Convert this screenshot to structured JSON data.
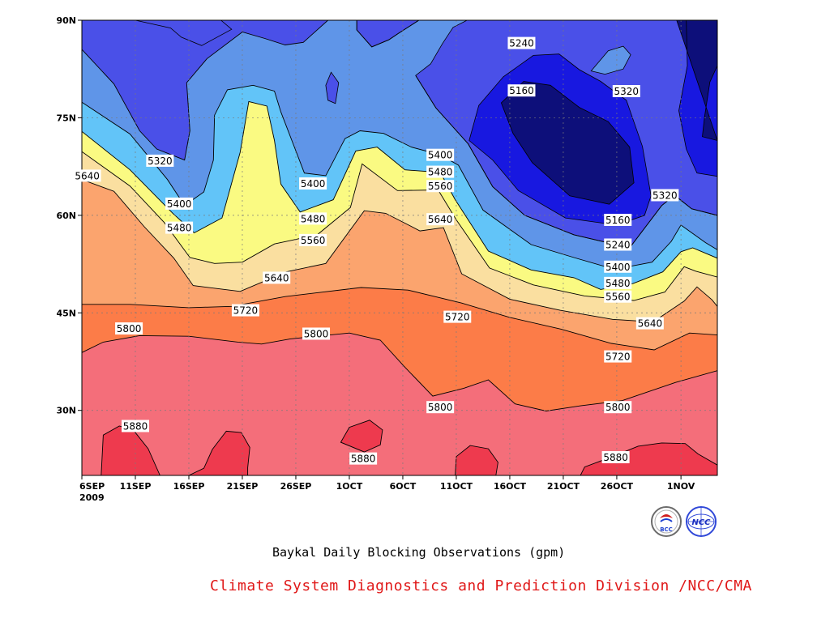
{
  "chart_data": {
    "type": "contour",
    "xlabel": "",
    "ylabel": "",
    "x_range": [
      "6SEP2009",
      "4NOV2009"
    ],
    "y_range": [
      20,
      90
    ],
    "grid": true,
    "x_ticks": [
      {
        "label": "6SEP",
        "day": 0,
        "year": "2009"
      },
      {
        "label": "11SEP",
        "day": 5
      },
      {
        "label": "16SEP",
        "day": 10
      },
      {
        "label": "21SEP",
        "day": 15
      },
      {
        "label": "26SEP",
        "day": 20
      },
      {
        "label": "1OCT",
        "day": 25
      },
      {
        "label": "6OCT",
        "day": 30
      },
      {
        "label": "11OCT",
        "day": 35
      },
      {
        "label": "16OCT",
        "day": 40
      },
      {
        "label": "21OCT",
        "day": 45
      },
      {
        "label": "26OCT",
        "day": 50
      },
      {
        "label": "1NOV",
        "day": 56
      }
    ],
    "y_ticks": [
      {
        "label": "30N",
        "lat": 30
      },
      {
        "label": "45N",
        "lat": 45
      },
      {
        "label": "60N",
        "lat": 60
      },
      {
        "label": "75N",
        "lat": 75
      },
      {
        "label": "90N",
        "lat": 90
      }
    ],
    "contour_levels": [
      5160,
      5240,
      5320,
      5400,
      5480,
      5560,
      5640,
      5720,
      5800,
      5880
    ],
    "fill_colors": {
      "below_5160": "#0d0f7a",
      "5160_5240": "#1818e0",
      "5240_5320": "#4a50e8",
      "5320_5400": "#5f95e8",
      "5400_5480": "#62c4f8",
      "5480_5560": "#fafa82",
      "5560_5640": "#fadfa0",
      "5640_5720": "#fba46e",
      "5720_5800": "#fc7c48",
      "5800_5880": "#f46e7a",
      "above_5880": "#ee3a4e"
    },
    "contour_labels": [
      {
        "text": "5880",
        "day": 5,
        "lat": 27.6
      },
      {
        "text": "5880",
        "day": 26.3,
        "lat": 22.6
      },
      {
        "text": "5880",
        "day": 49.9,
        "lat": 22.8
      },
      {
        "text": "5800",
        "day": 4.4,
        "lat": 42.6
      },
      {
        "text": "5800",
        "day": 21.9,
        "lat": 41.8
      },
      {
        "text": "5800",
        "day": 33.5,
        "lat": 30.5
      },
      {
        "text": "5800",
        "day": 50.1,
        "lat": 30.5
      },
      {
        "text": "5720",
        "day": 15.3,
        "lat": 45.4
      },
      {
        "text": "5720",
        "day": 35.1,
        "lat": 44.4
      },
      {
        "text": "5720",
        "day": 50.1,
        "lat": 38.3
      },
      {
        "text": "5640",
        "day": 0.5,
        "lat": 66.1
      },
      {
        "text": "5640",
        "day": 18.2,
        "lat": 50.4
      },
      {
        "text": "5640",
        "day": 33.5,
        "lat": 59.4
      },
      {
        "text": "5640",
        "day": 53.1,
        "lat": 43.4
      },
      {
        "text": "5560",
        "day": 21.6,
        "lat": 56.2
      },
      {
        "text": "5560",
        "day": 33.5,
        "lat": 64.5
      },
      {
        "text": "5560",
        "day": 50.1,
        "lat": 47.5
      },
      {
        "text": "5480",
        "day": 9.1,
        "lat": 58.1
      },
      {
        "text": "5480",
        "day": 21.6,
        "lat": 59.5
      },
      {
        "text": "5480",
        "day": 33.5,
        "lat": 66.7
      },
      {
        "text": "5480",
        "day": 50.1,
        "lat": 49.6
      },
      {
        "text": "5400",
        "day": 9.1,
        "lat": 61.8
      },
      {
        "text": "5400",
        "day": 21.6,
        "lat": 64.9
      },
      {
        "text": "5400",
        "day": 33.5,
        "lat": 69.3
      },
      {
        "text": "5400",
        "day": 50.1,
        "lat": 52.1
      },
      {
        "text": "5320",
        "day": 7.3,
        "lat": 68.4
      },
      {
        "text": "5320",
        "day": 50.9,
        "lat": 79.1
      },
      {
        "text": "5320",
        "day": 54.5,
        "lat": 63.1
      },
      {
        "text": "5240",
        "day": 41.1,
        "lat": 86.5
      },
      {
        "text": "5240",
        "day": 50.1,
        "lat": 55.5
      },
      {
        "text": "5160",
        "day": 41.1,
        "lat": 79.2
      },
      {
        "text": "5160",
        "day": 50.1,
        "lat": 59.3
      }
    ],
    "contours": [
      {
        "level": "5880",
        "polygons": [
          [
            [
              0,
              20
            ],
            [
              1.8,
              20
            ],
            [
              2.0,
              26.2
            ],
            [
              3.5,
              27.6
            ],
            [
              4.8,
              27.0
            ],
            [
              6.2,
              24.1
            ],
            [
              7.3,
              20.0
            ],
            [
              8.5,
              20
            ],
            [
              10.0,
              20
            ],
            [
              11.4,
              21.1
            ],
            [
              12.2,
              24.0
            ],
            [
              13.5,
              26.8
            ],
            [
              14.9,
              26.6
            ],
            [
              15.7,
              24.3
            ],
            [
              15.5,
              21.2
            ],
            [
              15.5,
              20
            ],
            [
              24.9,
              20
            ],
            [
              24.9,
              20
            ],
            [
              20,
              20
            ]
          ],
          [
            [
              24.2,
              25.1
            ],
            [
              25.0,
              27.4
            ],
            [
              26.9,
              28.5
            ],
            [
              28.1,
              27.0
            ],
            [
              27.9,
              24.7
            ],
            [
              26.4,
              23.6
            ]
          ],
          [
            [
              34.9,
              20.0
            ],
            [
              35.0,
              22.9
            ],
            [
              36.3,
              24.6
            ],
            [
              38.0,
              24.1
            ],
            [
              38.9,
              22.0
            ],
            [
              38.7,
              20.0
            ]
          ],
          [
            [
              46.6,
              20.0
            ],
            [
              47.0,
              21.3
            ],
            [
              49.6,
              22.9
            ],
            [
              52.0,
              24.5
            ],
            [
              54.2,
              25.0
            ],
            [
              56.4,
              24.9
            ],
            [
              57.6,
              23.3
            ],
            [
              59.4,
              21.6
            ],
            [
              59.4,
              20.0
            ]
          ]
        ]
      },
      {
        "level": "5800",
        "line": [
          [
            0,
            38.9
          ],
          [
            2.0,
            40.5
          ],
          [
            5.4,
            41.5
          ],
          [
            10.0,
            41.4
          ],
          [
            14.6,
            40.5
          ],
          [
            16.8,
            40.2
          ],
          [
            19.5,
            41.0
          ],
          [
            25.0,
            41.9
          ],
          [
            27.9,
            40.8
          ],
          [
            30.1,
            36.8
          ],
          [
            32.8,
            32.2
          ],
          [
            35.7,
            33.4
          ],
          [
            38.0,
            34.7
          ],
          [
            40.5,
            31.0
          ],
          [
            43.4,
            29.9
          ],
          [
            46.6,
            30.7
          ],
          [
            50.5,
            31.5
          ],
          [
            55.5,
            34.3
          ],
          [
            59.4,
            36.1
          ]
        ]
      },
      {
        "level": "5720",
        "line": [
          [
            0,
            46.3
          ],
          [
            4.5,
            46.3
          ],
          [
            10.0,
            45.8
          ],
          [
            14.0,
            46.0
          ],
          [
            19.0,
            47.5
          ],
          [
            26.1,
            48.9
          ],
          [
            30.5,
            48.5
          ],
          [
            35.5,
            46.5
          ],
          [
            40.0,
            44.3
          ],
          [
            44.8,
            42.5
          ],
          [
            49.5,
            40.3
          ],
          [
            53.5,
            39.3
          ],
          [
            56.8,
            41.9
          ],
          [
            59.4,
            41.6
          ]
        ]
      },
      {
        "level": "5640",
        "line": [
          [
            0,
            65.5
          ],
          [
            3.0,
            63.7
          ],
          [
            5.8,
            58.3
          ],
          [
            8.6,
            53.4
          ],
          [
            10.4,
            49.2
          ],
          [
            14.8,
            48.3
          ],
          [
            19.1,
            51.3
          ],
          [
            22.8,
            52.6
          ],
          [
            26.4,
            60.7
          ],
          [
            28.4,
            60.3
          ],
          [
            31.6,
            57.6
          ],
          [
            33.8,
            58.1
          ],
          [
            35.5,
            51.0
          ],
          [
            40.0,
            47.1
          ],
          [
            44.7,
            45.4
          ],
          [
            49.6,
            44.0
          ],
          [
            53.4,
            43.6
          ],
          [
            56.3,
            46.8
          ],
          [
            57.5,
            49.0
          ],
          [
            58.9,
            47.0
          ],
          [
            59.4,
            46.0
          ]
        ]
      },
      {
        "level": "5560",
        "line": [
          [
            0,
            69.8
          ],
          [
            4.5,
            64.5
          ],
          [
            7.7,
            58.9
          ],
          [
            10.1,
            53.5
          ],
          [
            12.4,
            52.6
          ],
          [
            15.0,
            52.8
          ],
          [
            18.0,
            55.6
          ],
          [
            22.0,
            57.0
          ],
          [
            25.1,
            61.2
          ],
          [
            26.2,
            67.9
          ],
          [
            29.5,
            63.8
          ],
          [
            33.3,
            63.9
          ],
          [
            35.0,
            59.3
          ],
          [
            38.1,
            51.9
          ],
          [
            42.2,
            49.3
          ],
          [
            47.0,
            47.6
          ],
          [
            51.6,
            46.9
          ],
          [
            54.5,
            48.2
          ],
          [
            56.3,
            52.1
          ],
          [
            57.4,
            51.4
          ],
          [
            59.4,
            50.5
          ]
        ]
      },
      {
        "level": "5480",
        "line": [
          [
            0,
            72.9
          ],
          [
            4.5,
            67.0
          ],
          [
            8.5,
            60.3
          ],
          [
            10.5,
            57.3
          ],
          [
            13.1,
            59.6
          ],
          [
            14.8,
            69.7
          ],
          [
            15.6,
            77.5
          ],
          [
            17.3,
            76.8
          ],
          [
            18.0,
            71.5
          ],
          [
            18.6,
            64.8
          ],
          [
            20.4,
            60.5
          ],
          [
            23.5,
            62.4
          ],
          [
            25.6,
            69.9
          ],
          [
            27.6,
            70.5
          ],
          [
            30.2,
            67.0
          ],
          [
            33.5,
            66.6
          ],
          [
            34.9,
            62.4
          ],
          [
            38.0,
            54.5
          ],
          [
            42.0,
            51.6
          ],
          [
            46.0,
            50.4
          ],
          [
            48.5,
            48.6
          ],
          [
            51.5,
            49.5
          ],
          [
            54.3,
            51.3
          ],
          [
            56.0,
            54.4
          ],
          [
            57.1,
            55.0
          ],
          [
            59.4,
            53.4
          ]
        ]
      },
      {
        "level": "5400",
        "line": [
          [
            0,
            77.4
          ],
          [
            4.5,
            72.5
          ],
          [
            8.0,
            65.5
          ],
          [
            9.6,
            61.5
          ],
          [
            11.4,
            63.6
          ],
          [
            12.3,
            68.5
          ],
          [
            12.4,
            75.4
          ],
          [
            13.6,
            79.3
          ],
          [
            16.0,
            80.0
          ],
          [
            18.0,
            79.1
          ],
          [
            18.6,
            75.9
          ],
          [
            19.7,
            71.2
          ],
          [
            20.8,
            66.5
          ],
          [
            22.8,
            66.1
          ],
          [
            24.6,
            71.8
          ],
          [
            26.0,
            73.0
          ],
          [
            28.2,
            72.6
          ],
          [
            30.8,
            70.5
          ],
          [
            33.5,
            69.3
          ],
          [
            35.2,
            67.7
          ],
          [
            37.5,
            60.8
          ],
          [
            42.0,
            55.5
          ],
          [
            46.0,
            53.5
          ],
          [
            49.8,
            51.7
          ],
          [
            53.3,
            52.8
          ],
          [
            55.1,
            56.0
          ],
          [
            56.0,
            58.5
          ],
          [
            58.3,
            55.8
          ],
          [
            59.4,
            54.7
          ]
        ]
      },
      {
        "level": "5320",
        "line": [
          [
            0,
            85.5
          ],
          [
            3.0,
            80.2
          ],
          [
            5.4,
            73.0
          ],
          [
            7.0,
            70.2
          ],
          [
            9.6,
            68.5
          ],
          [
            10.1,
            73.0
          ],
          [
            9.8,
            80.4
          ],
          [
            11.7,
            84.1
          ],
          [
            15.0,
            88.2
          ],
          [
            17.1,
            87.2
          ],
          [
            19.0,
            86.2
          ],
          [
            20.7,
            86.6
          ],
          [
            23.0,
            90.0
          ]
        ]
      },
      {
        "level": "5320b",
        "line": [
          [
            25.7,
            90
          ],
          [
            25.7,
            88.5
          ],
          [
            27.1,
            85.9
          ],
          [
            28.7,
            87.0
          ],
          [
            29.6,
            88.0
          ],
          [
            31.5,
            90
          ]
        ]
      },
      {
        "level": "5320c",
        "line": [
          [
            31.2,
            81.5
          ],
          [
            33.1,
            76.5
          ],
          [
            36.1,
            71.0
          ],
          [
            38.4,
            64.4
          ],
          [
            41.4,
            60.0
          ],
          [
            46.0,
            57.0
          ],
          [
            51.2,
            55.0
          ],
          [
            54.2,
            61.5
          ],
          [
            55.4,
            63.1
          ],
          [
            57.0,
            61.0
          ],
          [
            59.4,
            60.0
          ]
        ]
      }
    ]
  },
  "captions": {
    "title": "Baykal Daily Blocking Observations (gpm)",
    "org": "Climate System Diagnostics and Prediction Division /NCC/CMA"
  },
  "logos": {
    "bcc": "BCC",
    "ncc": "NCC"
  }
}
